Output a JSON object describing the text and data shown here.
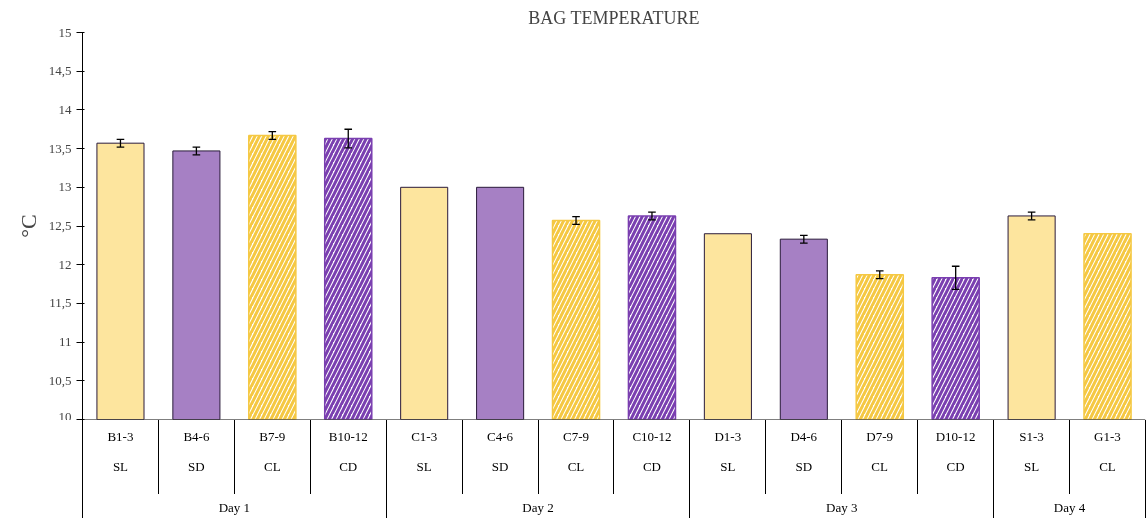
{
  "chart_data": {
    "type": "bar",
    "title": "BAG TEMPERATURE",
    "ylabel": "°C",
    "categories": [
      "B1-3",
      "B4-6",
      "B7-9",
      "B10-12",
      "C1-3",
      "C4-6",
      "C7-9",
      "C10-12",
      "D1-3",
      "D4-6",
      "D7-9",
      "D10-12",
      "S1-3",
      "G1-3"
    ],
    "series": [
      {
        "color": "#fde59e",
        "values": [
          13.57,
          null,
          null,
          null,
          13.0,
          null,
          null,
          null,
          12.4,
          null,
          null,
          null,
          12.63,
          null
        ],
        "errors": [
          0.05,
          null,
          null,
          null,
          null,
          null,
          null,
          null,
          null,
          null,
          null,
          null,
          0.05,
          null
        ]
      },
      {
        "color": "#a680c4",
        "values": [
          null,
          13.47,
          null,
          null,
          null,
          13.0,
          null,
          null,
          null,
          12.33,
          null,
          null,
          null,
          null
        ],
        "errors": [
          null,
          0.05,
          null,
          null,
          null,
          null,
          null,
          null,
          null,
          0.05,
          null,
          null,
          null,
          null
        ]
      },
      {
        "color": "#f5c842",
        "values": [
          null,
          null,
          13.67,
          null,
          null,
          null,
          12.57,
          null,
          null,
          null,
          11.87,
          null,
          null,
          12.4
        ],
        "errors": [
          null,
          null,
          0.05,
          null,
          null,
          null,
          0.05,
          null,
          null,
          null,
          0.05,
          null,
          null,
          null
        ]
      },
      {
        "color": "#7a3fb0",
        "values": [
          null,
          null,
          null,
          13.63,
          null,
          null,
          null,
          12.63,
          null,
          null,
          null,
          11.83,
          null,
          null
        ],
        "errors": [
          null,
          null,
          null,
          0.12,
          null,
          null,
          null,
          0.05,
          null,
          null,
          null,
          0.15,
          null,
          null
        ]
      }
    ],
    "annotations": [
      "SL",
      "SD",
      "CL",
      "CD",
      "SL",
      "SD",
      "CL",
      "CD",
      "SL",
      "SD",
      "CL",
      "CD",
      "SL",
      "CL",
      "Day 1",
      "Day 2",
      "Day 3",
      "Day 4"
    ],
    "ylim": [
      10,
      15
    ],
    "yticks": [
      10,
      {
        "value": 10.5,
        "label": "10,5"
      },
      11,
      {
        "value": 11.5,
        "label": "11,5"
      },
      12,
      {
        "value": 12.5,
        "label": "12,5"
      },
      13,
      {
        "value": 13.5,
        "label": "13,5"
      },
      14,
      {
        "value": 14.5,
        "label": "14,5"
      },
      15
    ],
    "grid": false
  }
}
